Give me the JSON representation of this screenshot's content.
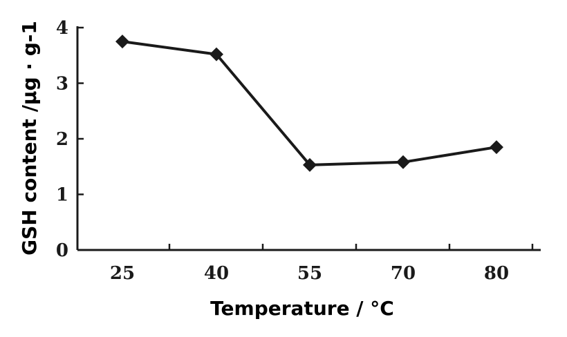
{
  "chart_data": {
    "type": "line",
    "title": "",
    "xlabel": "Temperature / °C",
    "ylabel": "GSH content /μg · g-1",
    "categories": [
      "25",
      "40",
      "55",
      "70",
      "80"
    ],
    "series": [
      {
        "values": [
          3.75,
          3.52,
          1.53,
          1.58,
          1.85
        ]
      }
    ],
    "ylim": [
      0,
      4
    ],
    "yticks": [
      "0",
      "1",
      "2",
      "3",
      "4"
    ],
    "grid": false,
    "legend": "none",
    "colors": {
      "line": "#1a1a1a",
      "axis": "#1a1a1a"
    }
  }
}
